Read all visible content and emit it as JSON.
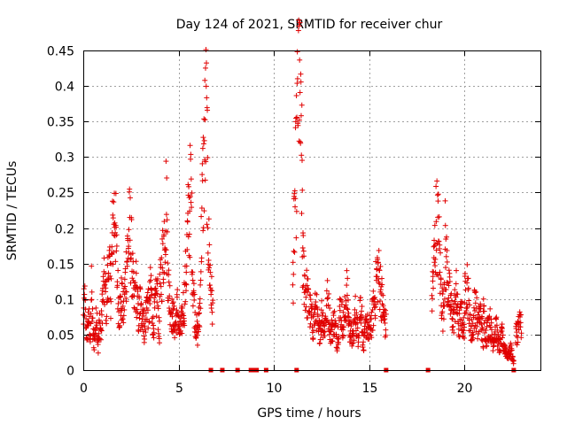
{
  "chart_data": {
    "type": "scatter",
    "title": "Day 124 of 2021, SRMTID for receiver chur",
    "xlabel": "GPS time / hours",
    "ylabel": "SRMTID / TECUs",
    "xlim": [
      0,
      24
    ],
    "ylim": [
      0,
      0.45
    ],
    "xticks": [
      0,
      5,
      10,
      15,
      20
    ],
    "yticks": [
      0,
      0.05,
      0.1,
      0.15,
      0.2,
      0.25,
      0.3,
      0.35,
      0.4,
      0.45
    ],
    "grid": true,
    "marker": "plus",
    "color": "#e00000",
    "series": [
      {
        "name": "SRMTID",
        "segments": [
          {
            "x_start": 0.0,
            "x_end": 0.5,
            "levels": [
              0.07,
              0.1,
              0.06,
              0.05,
              0.08,
              0.04,
              0.11,
              0.06
            ]
          },
          {
            "x_start": 0.5,
            "x_end": 1.0,
            "levels": [
              0.05,
              0.04,
              0.06,
              0.08,
              0.03,
              0.07,
              0.05,
              0.09
            ]
          },
          {
            "x_start": 1.0,
            "x_end": 2.0,
            "levels": [
              0.1,
              0.12,
              0.09,
              0.15,
              0.11,
              0.2,
              0.23,
              0.13,
              0.08,
              0.1
            ]
          },
          {
            "x_start": 2.0,
            "x_end": 3.0,
            "levels": [
              0.1,
              0.08,
              0.13,
              0.17,
              0.2,
              0.15,
              0.09,
              0.12,
              0.07,
              0.1
            ]
          },
          {
            "x_start": 3.0,
            "x_end": 4.0,
            "levels": [
              0.07,
              0.09,
              0.05,
              0.1,
              0.08,
              0.12,
              0.06,
              0.09,
              0.11,
              0.04
            ]
          },
          {
            "x_start": 4.0,
            "x_end": 4.7,
            "levels": [
              0.1,
              0.14,
              0.18,
              0.24,
              0.12,
              0.09,
              0.07
            ]
          },
          {
            "x_start": 4.7,
            "x_end": 5.3,
            "levels": [
              0.08,
              0.06,
              0.09,
              0.05,
              0.07,
              0.1
            ]
          },
          {
            "x_start": 5.3,
            "x_end": 6.0,
            "levels": [
              0.09,
              0.15,
              0.22,
              0.25,
              0.12,
              0.07,
              0.05
            ]
          },
          {
            "x_start": 6.0,
            "x_end": 6.8,
            "levels": [
              0.05,
              0.08,
              0.22,
              0.3,
              0.36,
              0.18,
              0.12,
              0.08
            ]
          },
          {
            "x_start": 11.0,
            "x_end": 11.5,
            "levels": [
              0.12,
              0.22,
              0.3,
              0.44,
              0.34,
              0.26
            ]
          },
          {
            "x_start": 11.5,
            "x_end": 12.5,
            "levels": [
              0.16,
              0.12,
              0.1,
              0.08,
              0.06,
              0.09,
              0.05,
              0.07
            ]
          },
          {
            "x_start": 12.5,
            "x_end": 14.0,
            "levels": [
              0.08,
              0.06,
              0.1,
              0.05,
              0.07,
              0.04,
              0.09,
              0.06,
              0.11,
              0.05
            ]
          },
          {
            "x_start": 14.0,
            "x_end": 15.0,
            "levels": [
              0.06,
              0.04,
              0.08,
              0.05,
              0.1,
              0.03,
              0.07,
              0.05
            ]
          },
          {
            "x_start": 15.0,
            "x_end": 15.9,
            "levels": [
              0.05,
              0.07,
              0.1,
              0.14,
              0.12,
              0.08,
              0.06
            ]
          },
          {
            "x_start": 18.3,
            "x_end": 19.0,
            "levels": [
              0.1,
              0.15,
              0.21,
              0.19,
              0.12,
              0.08,
              0.16
            ]
          },
          {
            "x_start": 19.0,
            "x_end": 20.0,
            "levels": [
              0.18,
              0.12,
              0.09,
              0.07,
              0.11,
              0.06,
              0.08,
              0.05
            ]
          },
          {
            "x_start": 20.0,
            "x_end": 21.0,
            "levels": [
              0.09,
              0.13,
              0.07,
              0.05,
              0.1,
              0.06,
              0.08,
              0.04
            ]
          },
          {
            "x_start": 21.0,
            "x_end": 22.0,
            "levels": [
              0.08,
              0.05,
              0.07,
              0.04,
              0.06,
              0.03,
              0.05
            ]
          },
          {
            "x_start": 22.0,
            "x_end": 22.6,
            "levels": [
              0.04,
              0.03,
              0.02,
              0.03,
              0.01
            ]
          },
          {
            "x_start": 22.7,
            "x_end": 23.0,
            "levels": [
              0.05,
              0.07
            ]
          }
        ],
        "zero_points": [
          6.7,
          7.3,
          8.1,
          8.8,
          8.95,
          9.1,
          9.6,
          11.2,
          15.9,
          18.1,
          22.6
        ]
      }
    ]
  }
}
